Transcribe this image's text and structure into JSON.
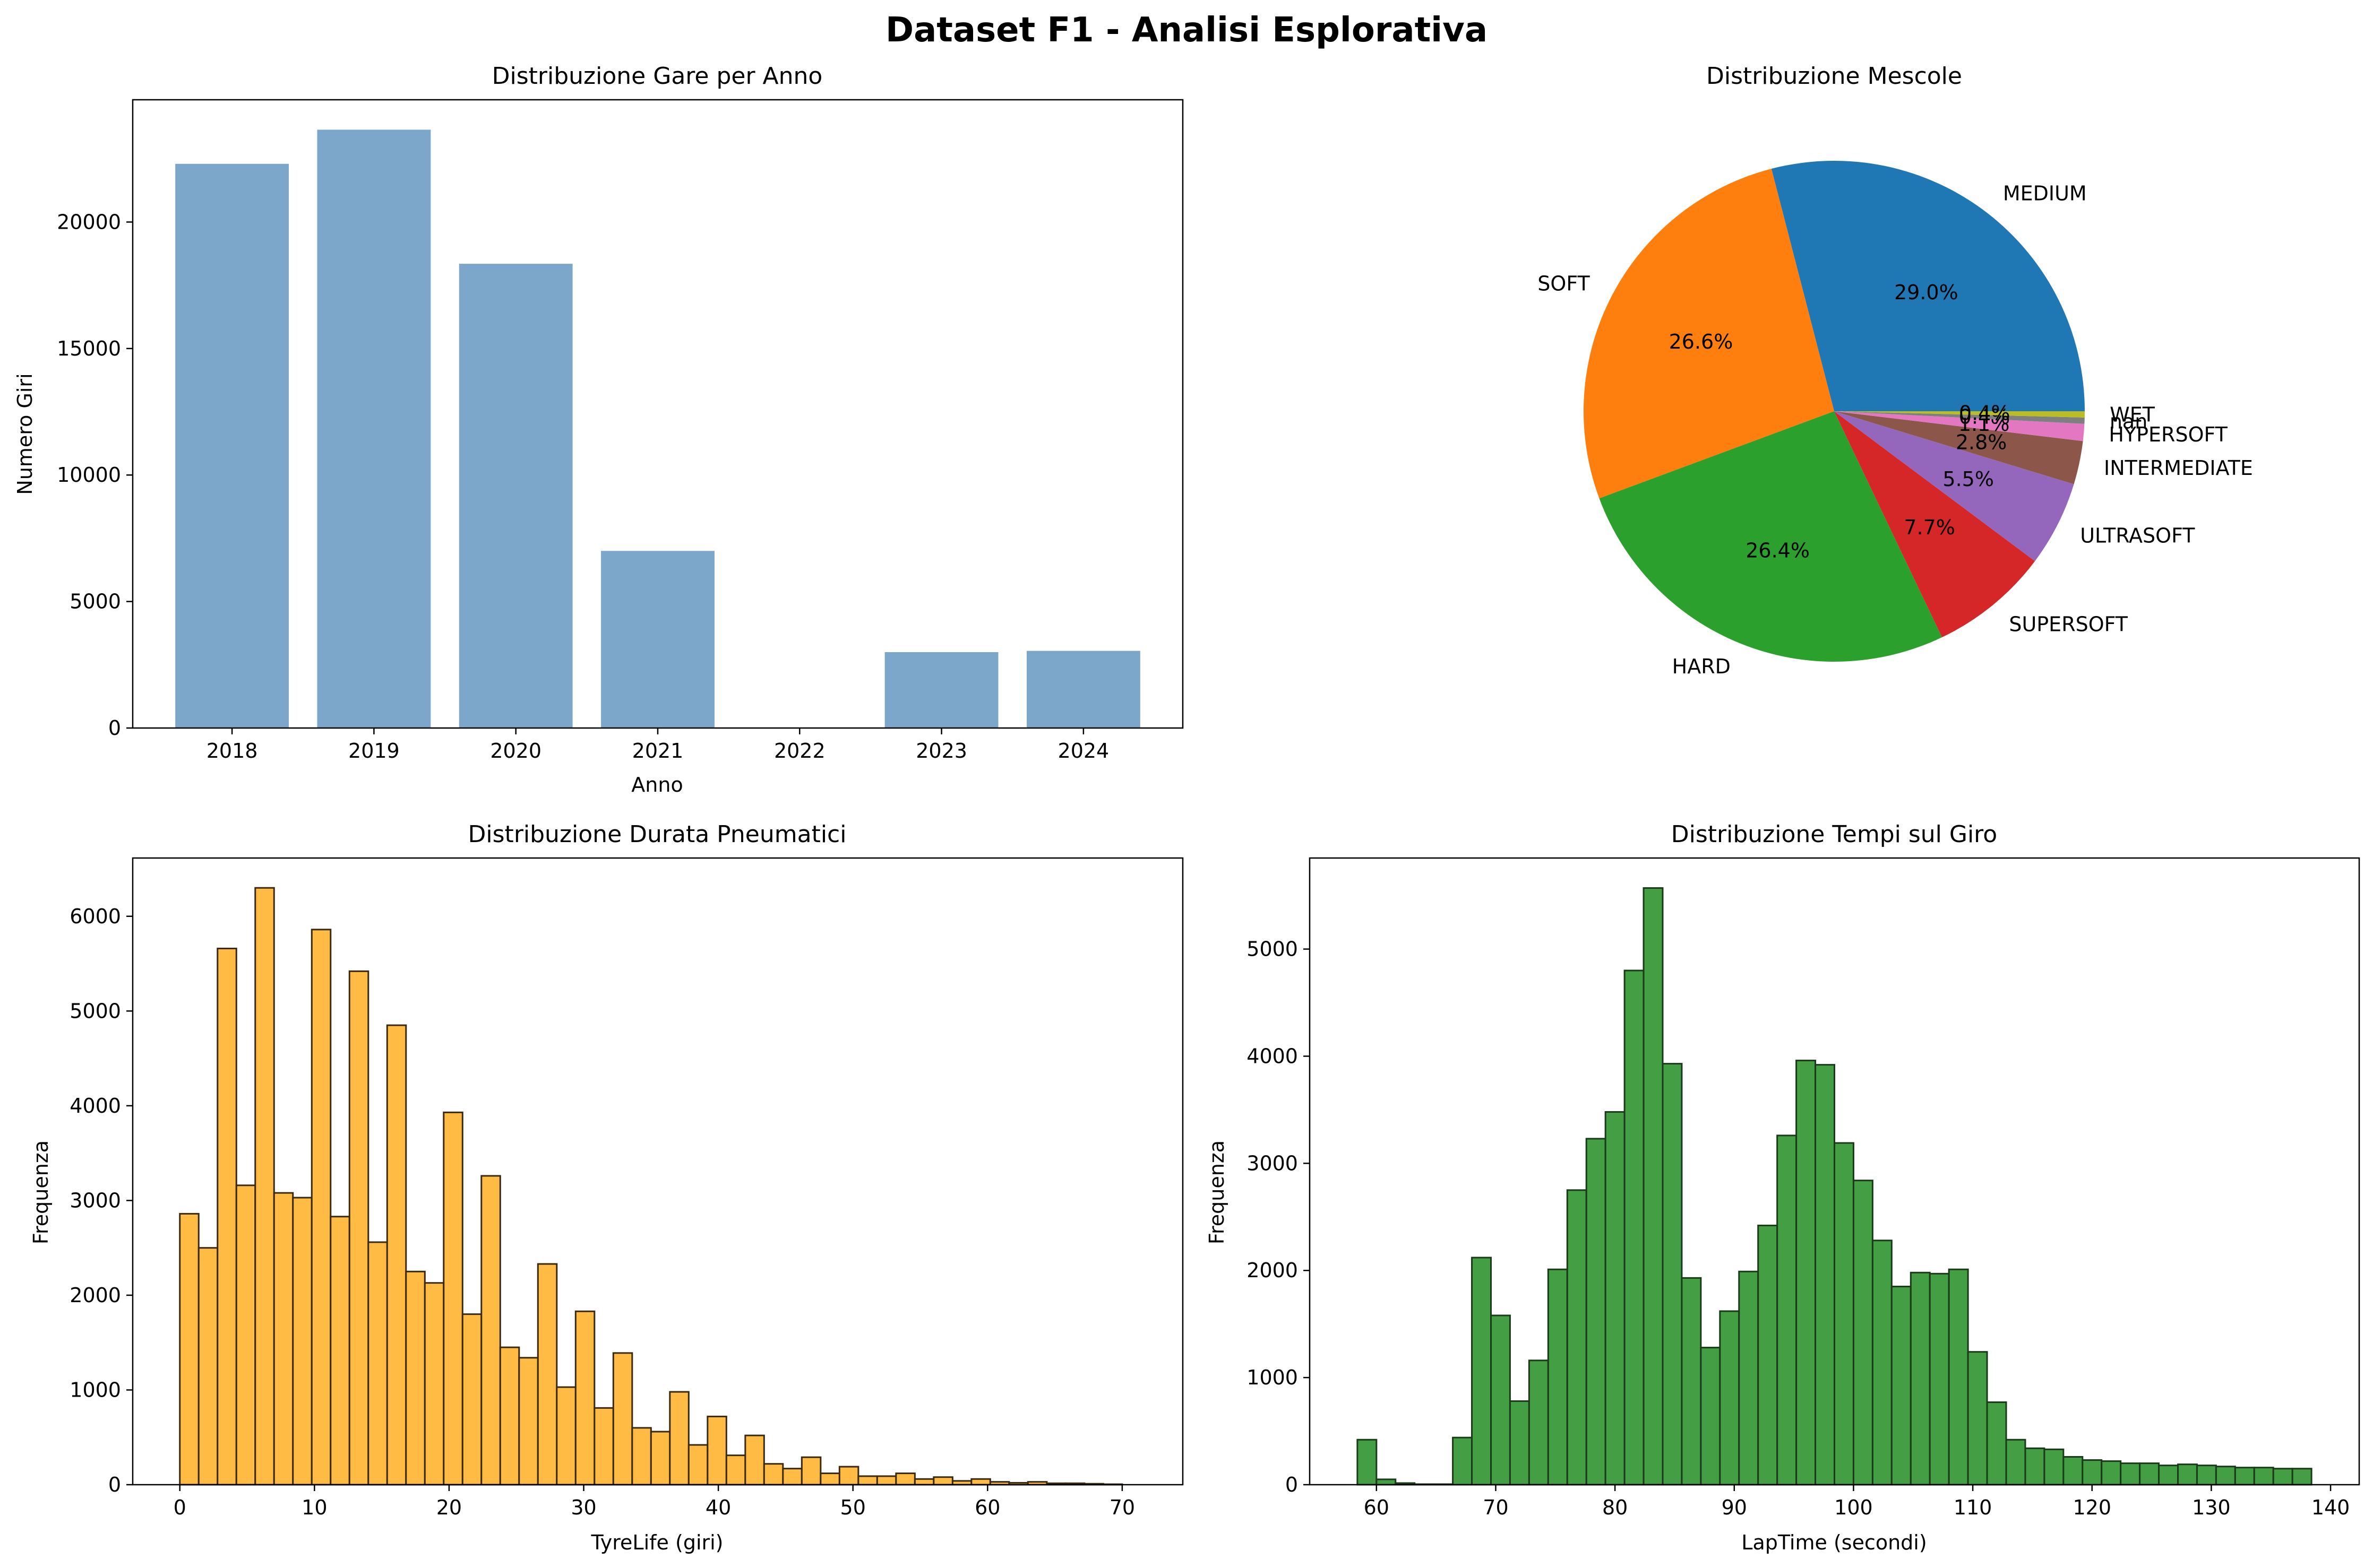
{
  "figure": {
    "suptitle": "Dataset F1 - Analisi Esplorativa"
  },
  "chart_data": [
    {
      "type": "bar",
      "title": "Distribuzione Gare per Anno",
      "xlabel": "Anno",
      "ylabel": "Numero Giri",
      "categories": [
        "2018",
        "2019",
        "2020",
        "2021",
        "2022",
        "2023",
        "2024"
      ],
      "values": [
        22300,
        23650,
        18350,
        7000,
        0,
        3000,
        3050
      ],
      "ylim": [
        0,
        24833
      ],
      "yticks": [
        0,
        5000,
        10000,
        15000,
        20000
      ],
      "color": "#7ca6ca",
      "grid": false
    },
    {
      "type": "pie",
      "title": "Distribuzione Mescole",
      "labels": [
        "MEDIUM",
        "SOFT",
        "HARD",
        "SUPERSOFT",
        "ULTRASOFT",
        "INTERMEDIATE",
        "HYPERSOFT",
        "nan",
        "WET"
      ],
      "values": [
        29.0,
        26.6,
        26.4,
        7.7,
        5.5,
        2.8,
        1.1,
        0.4,
        0.4
      ],
      "pct_labels": [
        "29.0%",
        "26.6%",
        "26.4%",
        "7.7%",
        "5.5%",
        "2.8%",
        "1.1%",
        "0.4%",
        "0.4%"
      ],
      "colors": [
        "#1f77b4",
        "#ff7f0e",
        "#2ca02c",
        "#d62728",
        "#9467bd",
        "#8c564b",
        "#e377c2",
        "#7f7f7f",
        "#bcbd22"
      ]
    },
    {
      "type": "bar",
      "subtype": "histogram",
      "title": "Distribuzione Durata Pneumatici",
      "xlabel": "TyreLife (giri)",
      "ylabel": "Frequenza",
      "bin_start": 0,
      "bin_width": 1.4,
      "values": [
        2860,
        2500,
        5660,
        3160,
        6300,
        3080,
        3030,
        5860,
        2830,
        5420,
        2560,
        4850,
        2250,
        2130,
        3930,
        1800,
        3260,
        1450,
        1340,
        2330,
        1030,
        1830,
        810,
        1390,
        600,
        560,
        980,
        420,
        720,
        310,
        520,
        220,
        170,
        290,
        120,
        190,
        90,
        90,
        120,
        60,
        80,
        40,
        60,
        30,
        20,
        30,
        15,
        15,
        10,
        5
      ],
      "xlim": [
        -3.5,
        74.5
      ],
      "ylim": [
        0,
        6615
      ],
      "xticks": [
        0,
        10,
        20,
        30,
        40,
        50,
        60,
        70
      ],
      "yticks": [
        0,
        1000,
        2000,
        3000,
        4000,
        5000,
        6000
      ],
      "color": "#ffbb44",
      "edgecolor": "#3a2a10"
    },
    {
      "type": "bar",
      "subtype": "histogram",
      "title": "Distribuzione Tempi sul Giro",
      "xlabel": "LapTime (secondi)",
      "ylabel": "Frequenza",
      "bin_start": 58.4,
      "bin_width": 1.6,
      "values": [
        420,
        50,
        15,
        5,
        5,
        440,
        2120,
        1580,
        780,
        1160,
        2010,
        2750,
        3230,
        3480,
        4800,
        5570,
        3930,
        1930,
        1280,
        1620,
        1990,
        2420,
        3260,
        3960,
        3920,
        3190,
        2840,
        2280,
        1850,
        1980,
        1970,
        2010,
        1240,
        770,
        420,
        340,
        330,
        260,
        230,
        220,
        200,
        200,
        180,
        190,
        180,
        170,
        160,
        160,
        150,
        150
      ],
      "xlim": [
        54.4,
        142.4
      ],
      "ylim": [
        0,
        5850
      ],
      "xticks": [
        60,
        70,
        80,
        90,
        100,
        110,
        120,
        130,
        140
      ],
      "yticks": [
        0,
        1000,
        2000,
        3000,
        4000,
        5000
      ],
      "color": "#449e44",
      "edgecolor": "#1a3a1a"
    }
  ]
}
